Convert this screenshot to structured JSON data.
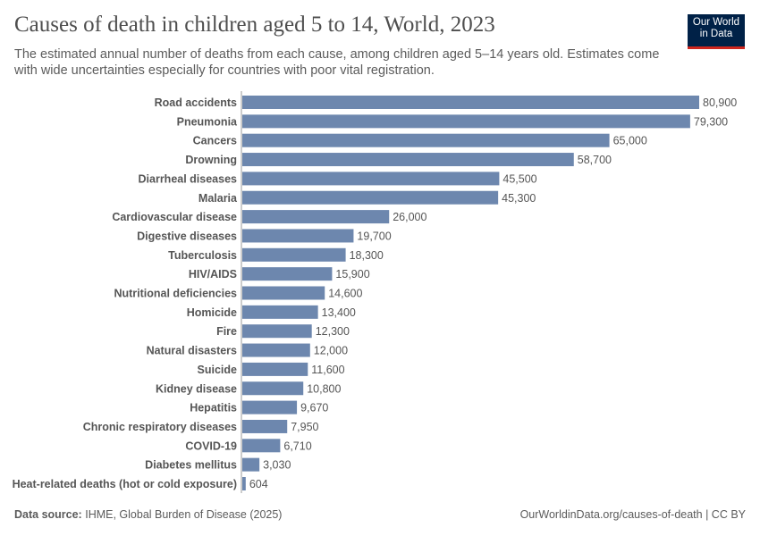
{
  "header": {
    "title": "Causes of death in children aged 5 to 14, World, 2023",
    "subtitle": "The estimated annual number of deaths from each cause, among children aged 5–14 years old. Estimates come with wide uncertainties especially for countries with poor vital registration.",
    "logo": "Our World in Data"
  },
  "footer": {
    "source_label": "Data source:",
    "source": "IHME, Global Burden of Disease (2025)",
    "url": "OurWorldinData.org/causes-of-death | CC BY"
  },
  "chart_data": {
    "type": "bar",
    "orientation": "horizontal",
    "bar_color": "#6d87ae",
    "categories": [
      "Road accidents",
      "Pneumonia",
      "Cancers",
      "Drowning",
      "Diarrheal diseases",
      "Malaria",
      "Cardiovascular disease",
      "Digestive diseases",
      "Tuberculosis",
      "HIV/AIDS",
      "Nutritional deficiencies",
      "Homicide",
      "Fire",
      "Natural disasters",
      "Suicide",
      "Kidney disease",
      "Hepatitis",
      "Chronic respiratory diseases",
      "COVID-19",
      "Diabetes mellitus",
      "Heat-related deaths (hot or cold exposure)"
    ],
    "values": [
      80900,
      79300,
      65000,
      58700,
      45500,
      45300,
      26000,
      19700,
      18300,
      15900,
      14600,
      13400,
      12300,
      12000,
      11600,
      10800,
      9670,
      7950,
      6710,
      3030,
      604
    ],
    "labels": [
      "80,900",
      "79,300",
      "65,000",
      "58,700",
      "45,500",
      "45,300",
      "26,000",
      "19,700",
      "18,300",
      "15,900",
      "14,600",
      "13,400",
      "12,300",
      "12,000",
      "11,600",
      "10,800",
      "9,670",
      "7,950",
      "6,710",
      "3,030",
      "604"
    ],
    "xlim": [
      0,
      80900
    ]
  }
}
